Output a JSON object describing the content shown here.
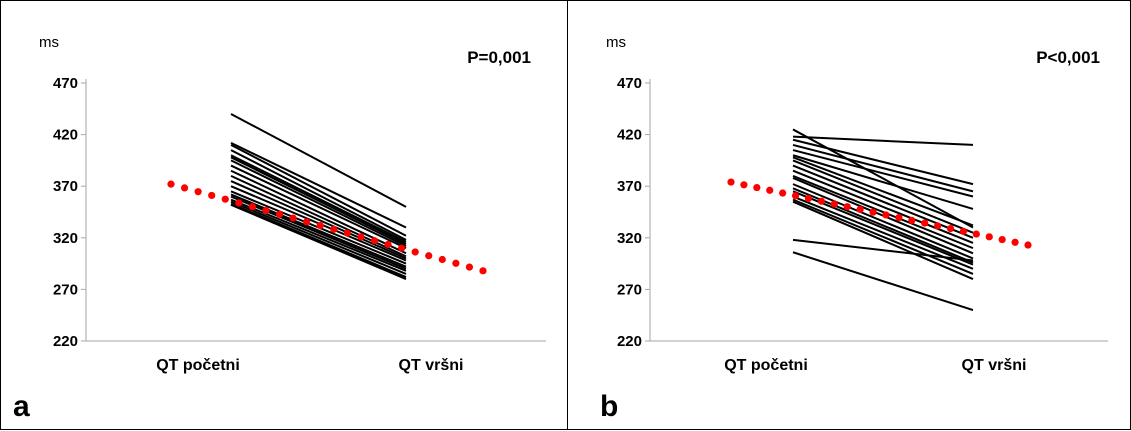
{
  "chart_data": [
    {
      "type": "line",
      "panel_label": "a",
      "ylabel": "ms",
      "annotation": "P=0,001",
      "categories": [
        "QT početni",
        "QT vršni"
      ],
      "yticks": [
        220,
        270,
        320,
        370,
        420,
        470
      ],
      "ylim": [
        220,
        470
      ],
      "grid": false,
      "series": [
        {
          "values": [
            440,
            350
          ]
        },
        {
          "values": [
            412,
            330
          ]
        },
        {
          "values": [
            410,
            322
          ]
        },
        {
          "values": [
            405,
            318
          ]
        },
        {
          "values": [
            400,
            316
          ]
        },
        {
          "values": [
            398,
            314
          ]
        },
        {
          "values": [
            395,
            312
          ]
        },
        {
          "values": [
            390,
            310
          ]
        },
        {
          "values": [
            385,
            305
          ]
        },
        {
          "values": [
            380,
            302
          ]
        },
        {
          "values": [
            375,
            300
          ]
        },
        {
          "values": [
            370,
            298
          ]
        },
        {
          "values": [
            365,
            295
          ]
        },
        {
          "values": [
            362,
            292
          ]
        },
        {
          "values": [
            360,
            290
          ]
        },
        {
          "values": [
            357,
            288
          ]
        },
        {
          "values": [
            355,
            285
          ]
        },
        {
          "values": [
            353,
            282
          ]
        },
        {
          "values": [
            352,
            280
          ]
        }
      ],
      "trend_values": [
        372,
        288
      ],
      "colors": {
        "lines": "#000000",
        "trend": "#ff0000"
      }
    },
    {
      "type": "line",
      "panel_label": "b",
      "ylabel": "ms",
      "annotation": "P<0,001",
      "categories": [
        "QT početni",
        "QT vršni"
      ],
      "yticks": [
        220,
        270,
        320,
        370,
        420,
        470
      ],
      "ylim": [
        220,
        470
      ],
      "grid": false,
      "series": [
        {
          "values": [
            425,
            330
          ]
        },
        {
          "values": [
            418,
            410
          ]
        },
        {
          "values": [
            415,
            372
          ]
        },
        {
          "values": [
            410,
            365
          ]
        },
        {
          "values": [
            405,
            360
          ]
        },
        {
          "values": [
            400,
            348
          ]
        },
        {
          "values": [
            398,
            332
          ]
        },
        {
          "values": [
            395,
            325
          ]
        },
        {
          "values": [
            390,
            320
          ]
        },
        {
          "values": [
            385,
            315
          ]
        },
        {
          "values": [
            380,
            310
          ]
        },
        {
          "values": [
            378,
            305
          ]
        },
        {
          "values": [
            372,
            300
          ]
        },
        {
          "values": [
            368,
            296
          ]
        },
        {
          "values": [
            365,
            294
          ]
        },
        {
          "values": [
            360,
            290
          ]
        },
        {
          "values": [
            357,
            285
          ]
        },
        {
          "values": [
            355,
            280
          ]
        },
        {
          "values": [
            318,
            298
          ]
        },
        {
          "values": [
            306,
            250
          ]
        }
      ],
      "trend_values": [
        374,
        313
      ],
      "colors": {
        "lines": "#000000",
        "trend": "#ff0000"
      }
    }
  ]
}
